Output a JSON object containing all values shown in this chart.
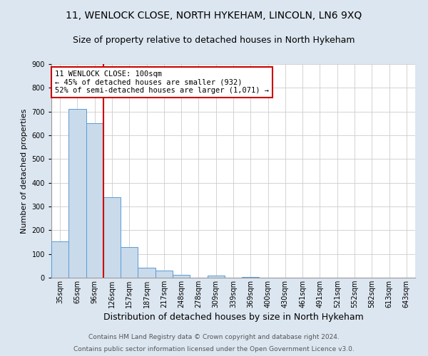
{
  "title1": "11, WENLOCK CLOSE, NORTH HYKEHAM, LINCOLN, LN6 9XQ",
  "title2": "Size of property relative to detached houses in North Hykeham",
  "xlabel": "Distribution of detached houses by size in North Hykeham",
  "ylabel": "Number of detached properties",
  "categories": [
    "35sqm",
    "65sqm",
    "96sqm",
    "126sqm",
    "157sqm",
    "187sqm",
    "217sqm",
    "248sqm",
    "278sqm",
    "309sqm",
    "339sqm",
    "369sqm",
    "400sqm",
    "430sqm",
    "461sqm",
    "491sqm",
    "521sqm",
    "552sqm",
    "582sqm",
    "613sqm",
    "643sqm"
  ],
  "values": [
    152,
    710,
    650,
    340,
    130,
    42,
    30,
    12,
    0,
    8,
    0,
    2,
    0,
    0,
    0,
    0,
    0,
    0,
    0,
    0,
    0
  ],
  "bar_color": "#c9daea",
  "bar_edge_color": "#5b9bd5",
  "vline_color": "#cc0000",
  "vline_x_index": 2.5,
  "annotation_text": "11 WENLOCK CLOSE: 100sqm\n← 45% of detached houses are smaller (932)\n52% of semi-detached houses are larger (1,071) →",
  "annotation_box_color": "#ffffff",
  "annotation_box_edge": "#cc0000",
  "ylim": [
    0,
    900
  ],
  "yticks": [
    0,
    100,
    200,
    300,
    400,
    500,
    600,
    700,
    800,
    900
  ],
  "footer1": "Contains HM Land Registry data © Crown copyright and database right 2024.",
  "footer2": "Contains public sector information licensed under the Open Government Licence v3.0.",
  "bg_color": "#dce6f0",
  "plot_bg_color": "#ffffff",
  "title1_fontsize": 10,
  "title2_fontsize": 9,
  "xlabel_fontsize": 9,
  "ylabel_fontsize": 8,
  "tick_fontsize": 7,
  "footer_fontsize": 6.5,
  "annot_fontsize": 7.5
}
